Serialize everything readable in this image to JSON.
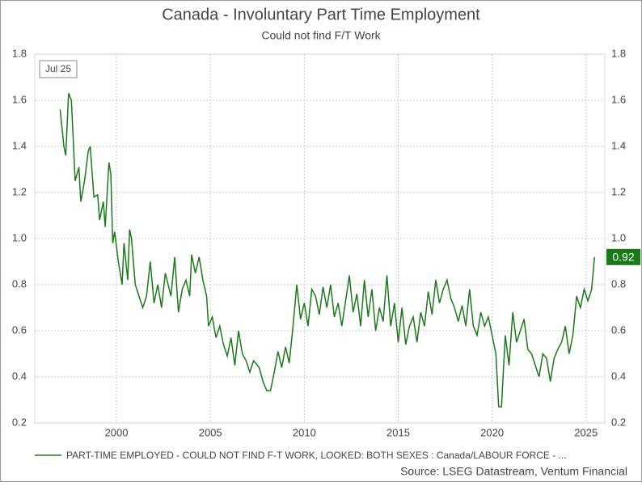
{
  "chart_data": {
    "type": "line",
    "title": "Canada - Involuntary Part Time Employment",
    "subtitle": "Could not find F/T Work",
    "date_label": "Jul 25",
    "source": "Source: LSEG Datastream, Ventum Financial",
    "x": [
      1997.0,
      1997.2,
      1997.3,
      1997.45,
      1997.6,
      1997.8,
      1998.0,
      1998.1,
      1998.3,
      1998.5,
      1998.6,
      1998.8,
      1999.0,
      1999.1,
      1999.3,
      1999.4,
      1999.6,
      1999.7,
      1999.8,
      1999.9,
      2000.1,
      2000.3,
      2000.4,
      2000.6,
      2000.7,
      2000.8,
      2001.0,
      2001.2,
      2001.4,
      2001.6,
      2001.8,
      2002.0,
      2002.2,
      2002.4,
      2002.6,
      2002.9,
      2003.1,
      2003.3,
      2003.5,
      2003.7,
      2003.9,
      2004.0,
      2004.2,
      2004.4,
      2004.6,
      2004.8,
      2004.9,
      2005.1,
      2005.3,
      2005.5,
      2005.7,
      2005.9,
      2006.1,
      2006.3,
      2006.5,
      2006.7,
      2006.9,
      2007.1,
      2007.3,
      2007.6,
      2007.8,
      2008.0,
      2008.2,
      2008.4,
      2008.6,
      2008.8,
      2009.0,
      2009.2,
      2009.4,
      2009.6,
      2009.8,
      2010.0,
      2010.2,
      2010.4,
      2010.6,
      2010.8,
      2011.0,
      2011.2,
      2011.4,
      2011.6,
      2011.8,
      2012.0,
      2012.2,
      2012.4,
      2012.6,
      2012.8,
      2013.0,
      2013.2,
      2013.4,
      2013.6,
      2013.8,
      2014.0,
      2014.2,
      2014.4,
      2014.6,
      2014.8,
      2015.0,
      2015.2,
      2015.4,
      2015.6,
      2015.8,
      2016.0,
      2016.2,
      2016.4,
      2016.6,
      2016.8,
      2017.0,
      2017.2,
      2017.4,
      2017.6,
      2017.8,
      2018.0,
      2018.2,
      2018.4,
      2018.6,
      2018.8,
      2019.0,
      2019.2,
      2019.4,
      2019.6,
      2019.8,
      2020.0,
      2020.2,
      2020.35,
      2020.5,
      2020.7,
      2020.9,
      2021.1,
      2021.3,
      2021.5,
      2021.7,
      2021.9,
      2022.1,
      2022.3,
      2022.5,
      2022.7,
      2022.9,
      2023.1,
      2023.3,
      2023.5,
      2023.7,
      2023.9,
      2024.1,
      2024.3,
      2024.5,
      2024.7,
      2024.9,
      2025.1,
      2025.3,
      2025.45
    ],
    "series": [
      {
        "name": "PART-TIME EMPLOYED - COULD NOT FIND F-T WORK, LOOKED: BOTH SEXES : Canada/LABOUR FORCE - ...",
        "color": "#1a7a1a",
        "values": [
          1.56,
          1.4,
          1.36,
          1.63,
          1.6,
          1.25,
          1.31,
          1.16,
          1.25,
          1.38,
          1.4,
          1.18,
          1.19,
          1.08,
          1.16,
          1.05,
          1.33,
          1.28,
          0.98,
          1.03,
          0.9,
          0.8,
          0.98,
          0.82,
          1.04,
          1.0,
          0.8,
          0.75,
          0.7,
          0.75,
          0.9,
          0.72,
          0.8,
          0.7,
          0.85,
          0.75,
          0.92,
          0.68,
          0.78,
          0.82,
          0.75,
          0.93,
          0.85,
          0.92,
          0.82,
          0.75,
          0.62,
          0.66,
          0.57,
          0.62,
          0.54,
          0.49,
          0.57,
          0.45,
          0.6,
          0.5,
          0.47,
          0.42,
          0.47,
          0.44,
          0.38,
          0.34,
          0.34,
          0.42,
          0.51,
          0.44,
          0.53,
          0.46,
          0.62,
          0.8,
          0.65,
          0.72,
          0.62,
          0.78,
          0.75,
          0.67,
          0.79,
          0.7,
          0.8,
          0.66,
          0.72,
          0.62,
          0.73,
          0.84,
          0.68,
          0.76,
          0.62,
          0.82,
          0.66,
          0.78,
          0.6,
          0.7,
          0.64,
          0.84,
          0.62,
          0.72,
          0.55,
          0.7,
          0.54,
          0.62,
          0.66,
          0.55,
          0.68,
          0.62,
          0.77,
          0.67,
          0.82,
          0.72,
          0.78,
          0.82,
          0.74,
          0.7,
          0.64,
          0.71,
          0.62,
          0.78,
          0.62,
          0.58,
          0.68,
          0.62,
          0.66,
          0.58,
          0.5,
          0.27,
          0.27,
          0.58,
          0.45,
          0.68,
          0.55,
          0.6,
          0.65,
          0.52,
          0.5,
          0.45,
          0.4,
          0.5,
          0.48,
          0.38,
          0.48,
          0.52,
          0.55,
          0.62,
          0.5,
          0.58,
          0.75,
          0.7,
          0.78,
          0.73,
          0.78,
          0.92
        ]
      }
    ],
    "xlim": [
      1995.65,
      2026.0
    ],
    "xticks": [
      2000,
      2005,
      2010,
      2015,
      2020,
      2025
    ],
    "ylim": [
      0.2,
      1.8
    ],
    "yticks": [
      {
        "value": 0.2,
        "label": "0.2"
      },
      {
        "value": 0.4,
        "label": "0.4"
      },
      {
        "value": 0.6,
        "label": "0.6"
      },
      {
        "value": 0.8,
        "label": "0.8"
      },
      {
        "value": 1.0,
        "label": "1.0"
      },
      {
        "value": 1.2,
        "label": "1.2"
      },
      {
        "value": 1.4,
        "label": "1.4"
      },
      {
        "value": 1.6,
        "label": "1.6"
      },
      {
        "value": 1.8,
        "label": "1.8"
      }
    ],
    "grid": true
  }
}
